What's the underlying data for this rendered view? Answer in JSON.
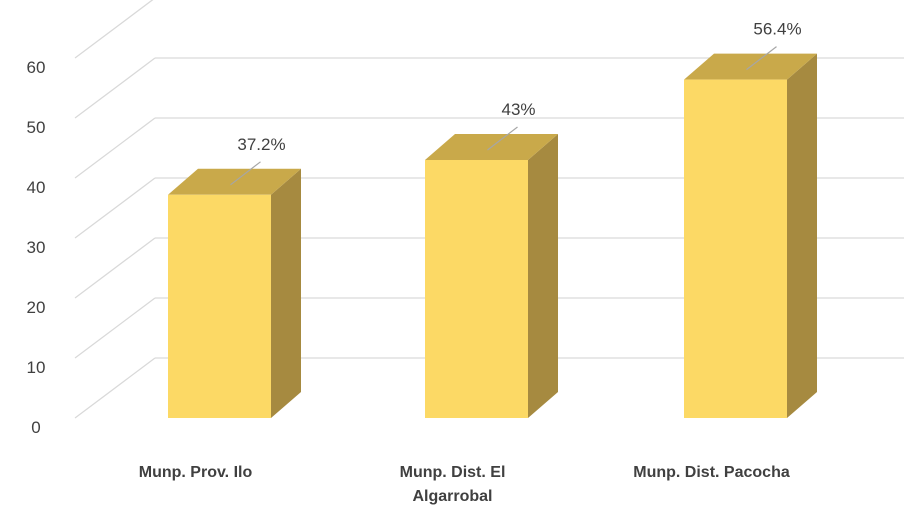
{
  "chart_data": {
    "type": "bar",
    "categories": [
      "Munp. Prov. Ilo",
      "Munp. Dist. El Algarrobal",
      "Munp. Dist. Pacocha"
    ],
    "category_lines": [
      [
        "Munp. Prov. Ilo"
      ],
      [
        "Munp. Dist. El",
        "Algarrobal"
      ],
      [
        "Munp. Dist. Pacocha"
      ]
    ],
    "values": [
      37.2,
      43,
      56.4
    ],
    "data_labels": [
      "37.2%",
      "43%",
      "56.4%"
    ],
    "title": "",
    "xlabel": "",
    "ylabel": "",
    "ylim": [
      0,
      70
    ],
    "yticks": [
      0,
      10,
      20,
      30,
      40,
      50,
      60
    ],
    "grid": true,
    "legend": "none",
    "style": "3d-column",
    "colors": {
      "front": "#FCD965",
      "top": "#C9A94A",
      "side": "#A68A40",
      "grid": "#D9D9D9",
      "text": "#404040"
    }
  }
}
